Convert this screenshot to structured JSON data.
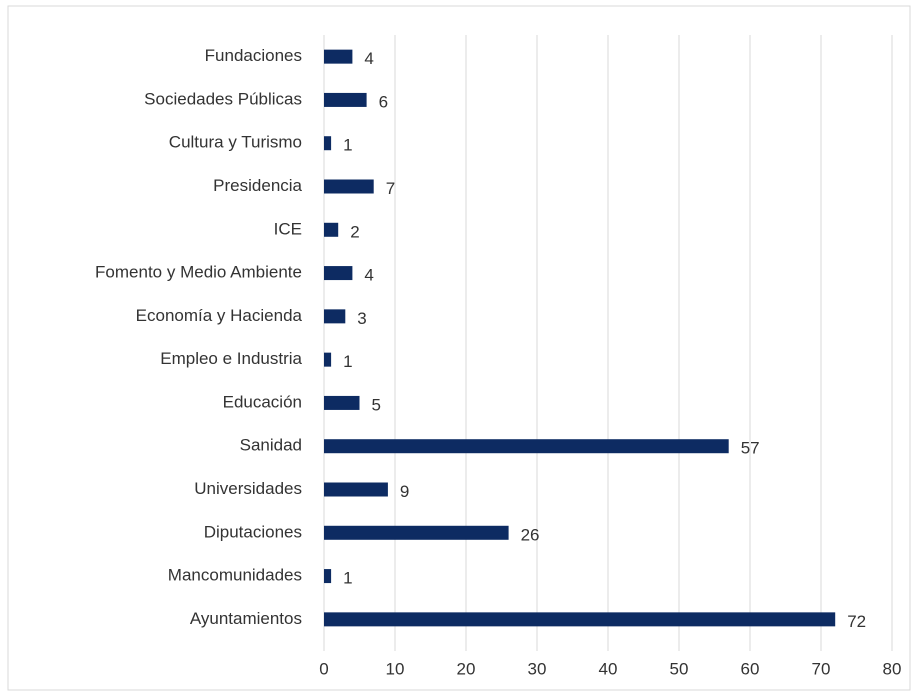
{
  "chart_data": {
    "type": "bar",
    "orientation": "horizontal",
    "categories": [
      "Fundaciones",
      "Sociedades Públicas",
      "Cultura y Turismo",
      "Presidencia",
      "ICE",
      "Fomento y Medio Ambiente",
      "Economía y Hacienda",
      "Empleo e Industria",
      "Educación",
      "Sanidad",
      "Universidades",
      "Diputaciones",
      "Mancomunidades",
      "Ayuntamientos"
    ],
    "values": [
      4,
      6,
      1,
      7,
      2,
      4,
      3,
      1,
      5,
      57,
      9,
      26,
      1,
      72
    ],
    "color": "#0d2b62",
    "xlim": [
      0,
      80
    ],
    "xticks": [
      0,
      10,
      20,
      30,
      40,
      50,
      60,
      70,
      80
    ],
    "grid": true
  }
}
